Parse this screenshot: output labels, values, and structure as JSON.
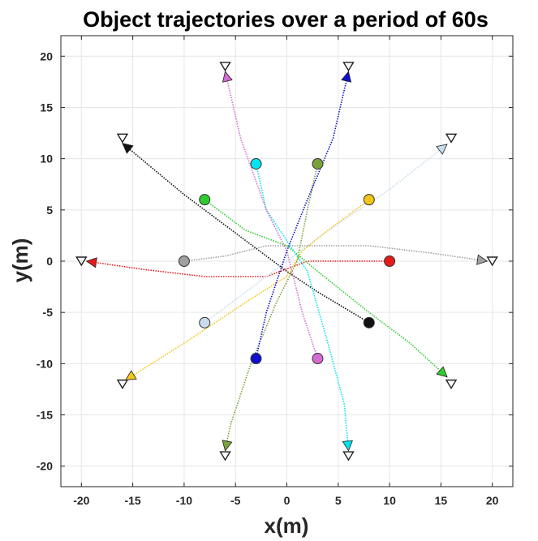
{
  "chart_data": {
    "type": "line",
    "title": "Object trajectories over a period of 60s",
    "xlabel": "x(m)",
    "ylabel": "y(m)",
    "xlim": [
      -22,
      22
    ],
    "ylim": [
      -22,
      22
    ],
    "xticks": [
      -20,
      -15,
      -10,
      -5,
      0,
      5,
      10,
      15,
      20
    ],
    "yticks": [
      -20,
      -15,
      -10,
      -5,
      0,
      5,
      10,
      15,
      20
    ],
    "grid": true,
    "legend": "none",
    "start_marker": "circle",
    "end_marker": "triangle",
    "series": [
      {
        "color": "#e41a1c",
        "points": [
          [
            10,
            0
          ],
          [
            6,
            0
          ],
          [
            2,
            0
          ],
          [
            -2,
            -1.5
          ],
          [
            -8,
            -1.5
          ],
          [
            -14,
            -0.8
          ],
          [
            -19.5,
            0
          ]
        ],
        "end": [
          -20,
          0
        ]
      },
      {
        "color": "#a0a0a0",
        "points": [
          [
            -10,
            0
          ],
          [
            -6,
            0.5
          ],
          [
            -2,
            1.5
          ],
          [
            2,
            1.5
          ],
          [
            8,
            1.5
          ],
          [
            14,
            0.8
          ],
          [
            19.5,
            0
          ]
        ],
        "end": [
          20,
          0
        ]
      },
      {
        "color": "#111111",
        "points": [
          [
            8,
            -6
          ],
          [
            3,
            -3
          ],
          [
            0,
            -1
          ],
          [
            -4,
            2
          ],
          [
            -10,
            6.5
          ],
          [
            -16,
            11.5
          ]
        ],
        "end": [
          -16,
          12
        ]
      },
      {
        "color": "#c8dcee",
        "points": [
          [
            -8,
            -6
          ],
          [
            -4,
            -3
          ],
          [
            0,
            0
          ],
          [
            4,
            3
          ],
          [
            10,
            7
          ],
          [
            15.6,
            11.4
          ]
        ],
        "end": [
          16,
          12
        ]
      },
      {
        "color": "#f2c618",
        "points": [
          [
            8,
            6
          ],
          [
            4,
            3
          ],
          [
            1.5,
            1
          ],
          [
            0,
            -1.5
          ],
          [
            -4,
            -4
          ],
          [
            -10,
            -8
          ],
          [
            -15.7,
            -11.6
          ]
        ],
        "end": [
          -16,
          -12
        ]
      },
      {
        "color": "#2ecc2e",
        "points": [
          [
            -8,
            6
          ],
          [
            -4,
            3
          ],
          [
            0,
            1.5
          ],
          [
            3,
            -1
          ],
          [
            8,
            -5
          ],
          [
            12,
            -8
          ],
          [
            15.6,
            -11.3
          ]
        ],
        "end": [
          16,
          -12
        ]
      },
      {
        "color": "#00e5ee",
        "points": [
          [
            -3,
            9.5
          ],
          [
            -2,
            5
          ],
          [
            0,
            2
          ],
          [
            2,
            -1
          ],
          [
            4,
            -8
          ],
          [
            5.6,
            -14
          ],
          [
            6,
            -18.5
          ]
        ],
        "end": [
          6,
          -19
        ]
      },
      {
        "color": "#d26bd2",
        "points": [
          [
            3,
            -9.5
          ],
          [
            1.5,
            -5
          ],
          [
            0,
            1
          ],
          [
            -2,
            5
          ],
          [
            -4.5,
            12
          ],
          [
            -6,
            18.5
          ]
        ],
        "end": [
          -6,
          19
        ]
      },
      {
        "color": "#7aa23c",
        "points": [
          [
            3,
            9.5
          ],
          [
            2,
            5
          ],
          [
            1,
            0
          ],
          [
            -1,
            -4
          ],
          [
            -3.5,
            -10
          ],
          [
            -5.5,
            -16
          ],
          [
            -6,
            -18.5
          ]
        ],
        "end": [
          -6,
          -19
        ]
      },
      {
        "color": "#1010cc",
        "points": [
          [
            -3,
            -9.5
          ],
          [
            -2,
            -5
          ],
          [
            0,
            1
          ],
          [
            2,
            6
          ],
          [
            4.5,
            12
          ],
          [
            6,
            18.5
          ]
        ],
        "end": [
          6,
          19
        ]
      }
    ]
  }
}
